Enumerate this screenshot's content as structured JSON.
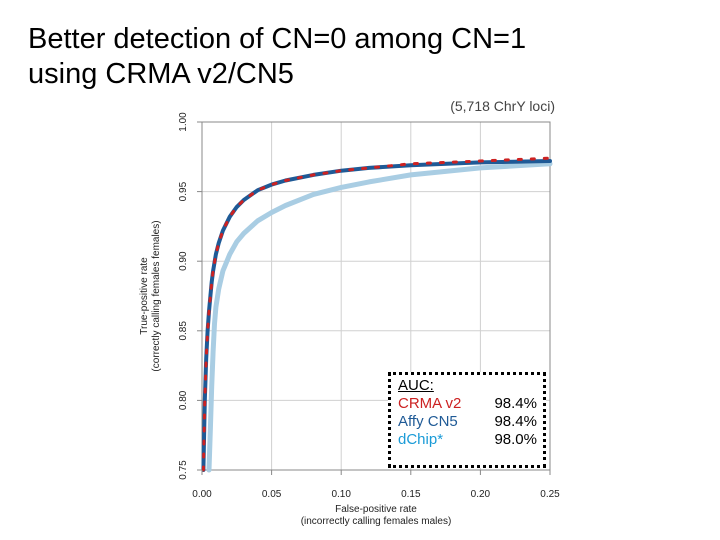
{
  "title": {
    "line1": "Better detection of CN=0 among CN=1",
    "line2": "using CRMA v2/CN5"
  },
  "chart_data": {
    "type": "line",
    "subtitle": "(5,718 ChrY loci)",
    "xlabel": "False-positive rate",
    "xlabel2": "(incorrectly calling females males)",
    "ylabel": "True-positive rate",
    "ylabel2": "(correctly calling females females)",
    "xlim": [
      0.0,
      0.25
    ],
    "ylim": [
      0.75,
      1.0
    ],
    "x_ticks": [
      0.0,
      0.05,
      0.1,
      0.15,
      0.2,
      0.25
    ],
    "x_tick_labels": [
      "0.00",
      "0.05",
      "0.10",
      "0.15",
      "0.20",
      "0.25"
    ],
    "y_ticks": [
      0.75,
      0.8,
      0.85,
      0.9,
      0.95,
      1.0
    ],
    "y_tick_labels": [
      "0.75",
      "0.80",
      "0.85",
      "0.90",
      "0.95",
      "1.00"
    ],
    "grid": true,
    "legend": {
      "heading": "AUC:",
      "placement": "bottom-right",
      "entries": [
        {
          "name": "CRMA v2",
          "value": "98.4%",
          "color": "#cc2222"
        },
        {
          "name": "Affy CN5",
          "value": "98.4%",
          "color": "#1f5a96"
        },
        {
          "name": "dChip*",
          "value": "98.0%",
          "color": "#1a9bd7"
        }
      ]
    },
    "series": [
      {
        "name": "dChip*",
        "color": "#a9cde3",
        "x": [
          0.005,
          0.006,
          0.007,
          0.008,
          0.009,
          0.01,
          0.012,
          0.015,
          0.02,
          0.025,
          0.03,
          0.04,
          0.05,
          0.06,
          0.08,
          0.1,
          0.12,
          0.15,
          0.2,
          0.25
        ],
        "y": [
          0.75,
          0.78,
          0.81,
          0.835,
          0.855,
          0.867,
          0.88,
          0.893,
          0.905,
          0.914,
          0.92,
          0.929,
          0.935,
          0.94,
          0.948,
          0.953,
          0.957,
          0.962,
          0.967,
          0.97
        ]
      },
      {
        "name": "Affy CN5",
        "color": "#1f5a96",
        "x": [
          0.001,
          0.002,
          0.003,
          0.004,
          0.005,
          0.006,
          0.007,
          0.008,
          0.01,
          0.012,
          0.015,
          0.02,
          0.025,
          0.03,
          0.04,
          0.05,
          0.06,
          0.08,
          0.1,
          0.12,
          0.15,
          0.2,
          0.25
        ],
        "y": [
          0.75,
          0.8,
          0.83,
          0.85,
          0.864,
          0.875,
          0.885,
          0.893,
          0.905,
          0.913,
          0.922,
          0.932,
          0.939,
          0.944,
          0.951,
          0.955,
          0.958,
          0.962,
          0.965,
          0.967,
          0.969,
          0.971,
          0.972
        ]
      },
      {
        "name": "CRMA v2",
        "color": "#cc2222",
        "x": [
          0.001,
          0.002,
          0.003,
          0.004,
          0.005,
          0.006,
          0.007,
          0.008,
          0.01,
          0.012,
          0.015,
          0.02,
          0.025,
          0.03,
          0.04,
          0.05,
          0.06,
          0.08,
          0.1,
          0.12,
          0.15,
          0.2,
          0.25
        ],
        "y": [
          0.75,
          0.8,
          0.83,
          0.85,
          0.864,
          0.875,
          0.885,
          0.893,
          0.905,
          0.913,
          0.922,
          0.932,
          0.939,
          0.944,
          0.951,
          0.955,
          0.958,
          0.962,
          0.965,
          0.967,
          0.97,
          0.972,
          0.974
        ]
      }
    ]
  }
}
